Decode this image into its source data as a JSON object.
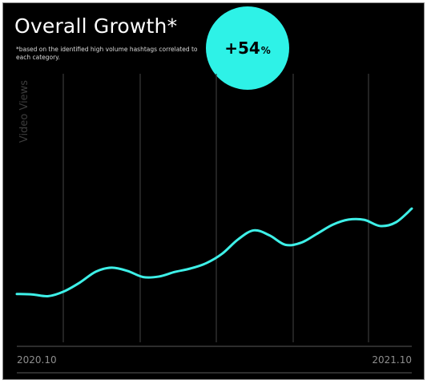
{
  "title": "Overall Growth*",
  "subtitle": "*based on the identified high volume hashtags correlated to each category.",
  "badge": {
    "value": "+54",
    "unit": "%"
  },
  "colors": {
    "background": "#000000",
    "line": "#3ef0e8",
    "gridline": "#3a3a3a",
    "accent": "#2ef2e7"
  },
  "chart_data": {
    "type": "line",
    "ylabel": "Video Views",
    "x_tick_labels": [
      "2020.10",
      "2021.10"
    ],
    "y_ticks_shown": false,
    "grid": "vertical",
    "series": [
      {
        "values": [
          0.18,
          0.178,
          0.172,
          0.19,
          0.223,
          0.263,
          0.278,
          0.266,
          0.243,
          0.245,
          0.262,
          0.275,
          0.295,
          0.33,
          0.383,
          0.417,
          0.398,
          0.363,
          0.371,
          0.404,
          0.438,
          0.457,
          0.456,
          0.433,
          0.447,
          0.498
        ]
      }
    ]
  }
}
